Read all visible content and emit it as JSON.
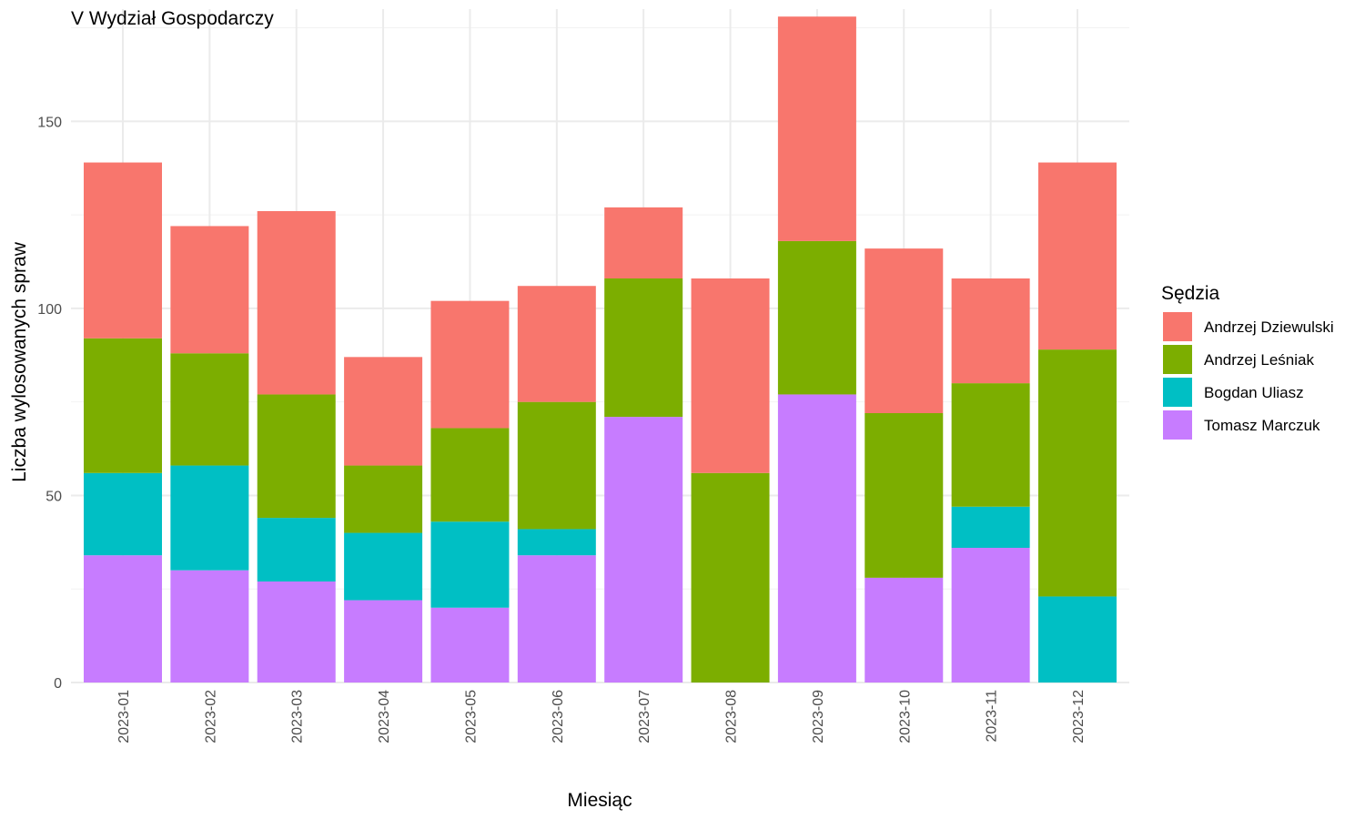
{
  "chart_data": {
    "type": "bar",
    "stacked": true,
    "title": "V Wydział Gospodarczy",
    "xlabel": "Miesiąc",
    "ylabel": "Liczba wylosowanych spraw",
    "ylim": [
      0,
      180
    ],
    "yticks": [
      0,
      50,
      100,
      150
    ],
    "grid": true,
    "legend": {
      "title": "Sędzia",
      "position": "right"
    },
    "categories": [
      "2023-01",
      "2023-02",
      "2023-03",
      "2023-04",
      "2023-05",
      "2023-06",
      "2023-07",
      "2023-08",
      "2023-09",
      "2023-10",
      "2023-11",
      "2023-12"
    ],
    "series": [
      {
        "name": "Tomasz Marczuk",
        "color": "#C77CFF",
        "values": [
          34,
          30,
          27,
          22,
          20,
          34,
          71,
          0,
          77,
          28,
          36,
          0
        ]
      },
      {
        "name": "Bogdan Uliasz",
        "color": "#00BFC4",
        "values": [
          22,
          28,
          17,
          18,
          23,
          7,
          0,
          0,
          0,
          0,
          11,
          23
        ]
      },
      {
        "name": "Andrzej Leśniak",
        "color": "#7CAE00",
        "values": [
          36,
          30,
          33,
          18,
          25,
          34,
          37,
          56,
          41,
          44,
          33,
          66
        ]
      },
      {
        "name": "Andrzej Dziewulski",
        "color": "#F8766D",
        "values": [
          47,
          34,
          49,
          29,
          34,
          31,
          19,
          52,
          60,
          44,
          28,
          50
        ]
      }
    ],
    "legend_order": [
      "Andrzej Dziewulski",
      "Andrzej Leśniak",
      "Bogdan Uliasz",
      "Tomasz Marczuk"
    ]
  }
}
